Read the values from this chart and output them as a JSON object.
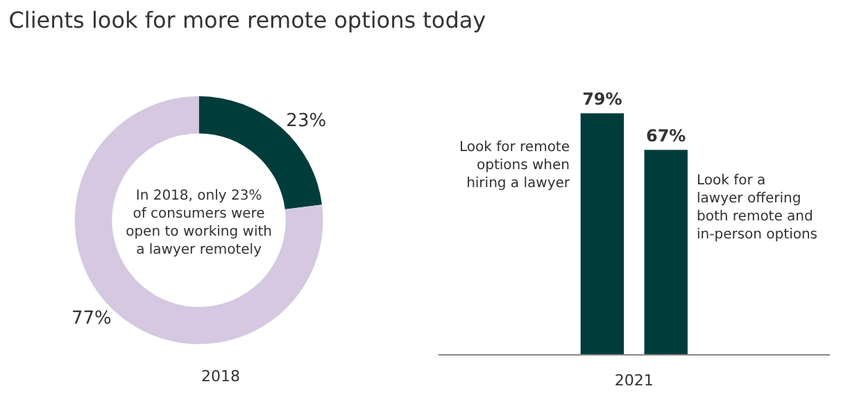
{
  "chart_data": [
    {
      "type": "donut",
      "title": "Clients look for more remote options today",
      "xlabel": "2018",
      "categories": [
        null,
        null
      ],
      "values": [
        23,
        77
      ],
      "colors": [
        "#003d3a",
        "#d5c8e0"
      ],
      "value_labels": [
        "23%",
        "77%"
      ],
      "annotations": [
        "In 2018, only 23%\nof consumers were\nopen to working with\na lawyer remotely"
      ]
    },
    {
      "type": "bar",
      "xlabel": "2021",
      "categories": [
        null,
        null
      ],
      "values": [
        79,
        67
      ],
      "color": "#003d3a",
      "value_labels": [
        "79%",
        "67%"
      ],
      "annotations": [
        "Look for remote\noptions when\nhiring a lawyer",
        "Look for a\nlawyer offering\nboth remote and\nin-person options"
      ]
    }
  ]
}
